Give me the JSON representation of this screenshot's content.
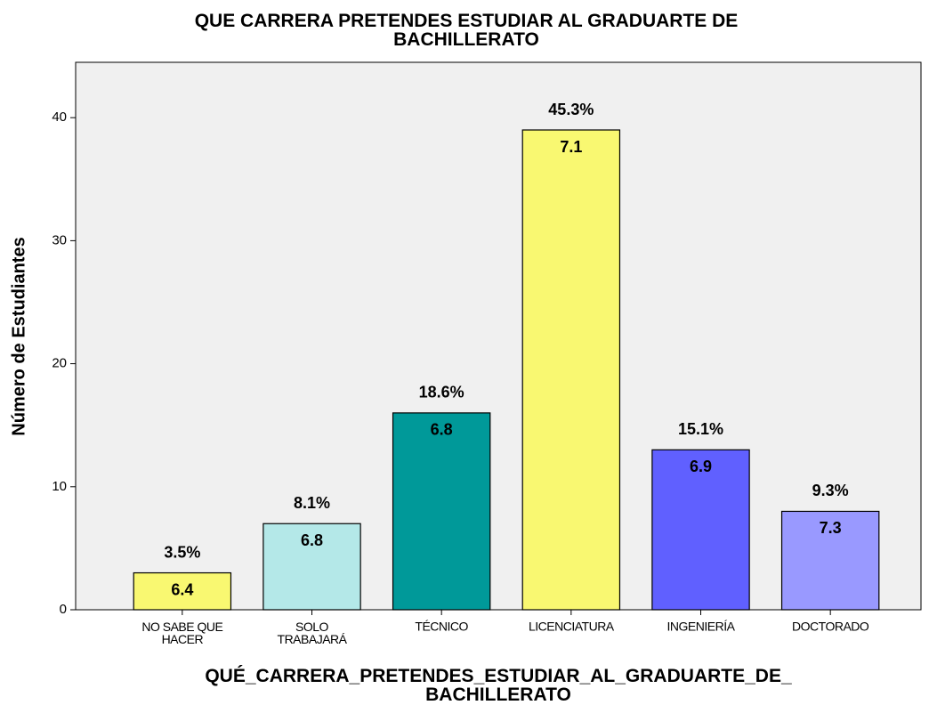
{
  "chart_data": {
    "type": "bar",
    "title": "QUE CARRERA PRETENDES ESTUDIAR AL GRADUARTE DE\nBACHILLERATO",
    "xlabel": "QUÉ_CARRERA_PRETENDES_ESTUDIAR_AL_GRADUARTE_DE_\nBACHILLERATO",
    "ylabel": "Número de Estudiantes",
    "categories": [
      "NO SABE QUE\nHACER",
      "SOLO\nTRABAJARÁ",
      "TÉCNICO",
      "LICENCIATURA",
      "INGENIERÍA",
      "DOCTORADO"
    ],
    "values": [
      3,
      7,
      16,
      39,
      13,
      8
    ],
    "percent_labels": [
      "3.5%",
      "8.1%",
      "18.6%",
      "45.3%",
      "15.1%",
      "9.3%"
    ],
    "inner_labels": [
      6.4,
      6.8,
      6.8,
      7.1,
      6.9,
      7.3
    ],
    "colors": [
      "#f9f871",
      "#b4e8e8",
      "#009999",
      "#f9f871",
      "#6060ff",
      "#9999ff"
    ],
    "ylim": [
      0,
      44.5
    ],
    "yticks": [
      0,
      10,
      20,
      30,
      40
    ]
  }
}
